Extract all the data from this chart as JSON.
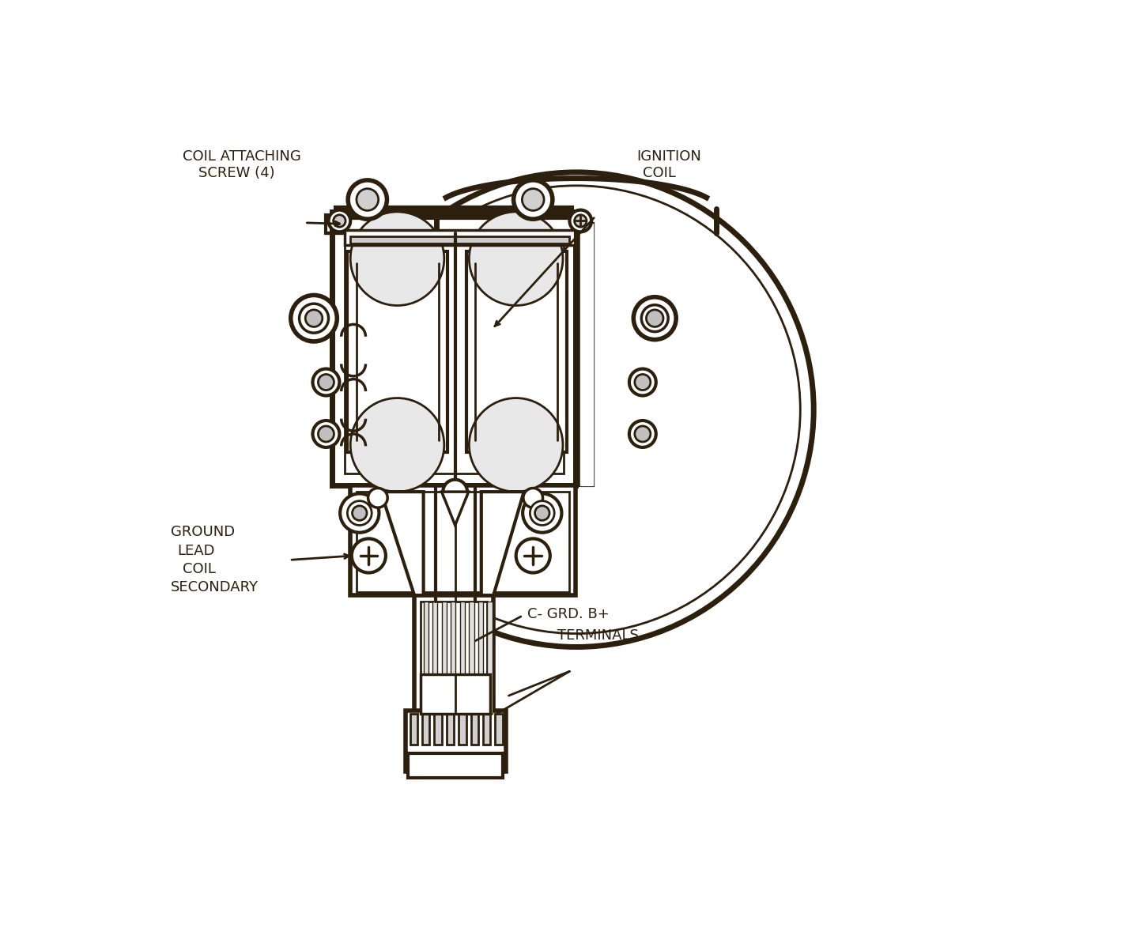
{
  "bg_color": "#ffffff",
  "lc": "#2d1f0e",
  "fig_w": 14.23,
  "fig_h": 11.74,
  "dpi": 100,
  "labels": {
    "coil_attaching_1": "COIL ATTACHING",
    "coil_attaching_2": "SCREW (4)",
    "ignition_1": "IGNITION",
    "ignition_2": "COIL",
    "ground_1": "GROUND",
    "ground_2": "LEAD",
    "ground_3": "COIL",
    "ground_4": "SECONDARY",
    "cgrd": "C- GRD. B+",
    "terminals": "TERMINALS"
  },
  "font_size": 13
}
